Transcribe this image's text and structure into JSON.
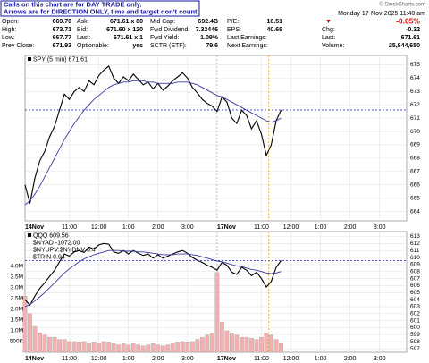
{
  "header": {
    "notice": [
      "Calls on this chart are for DAY TRADE only.",
      "Arrows are for DIRECTION ONLY, time and target don't count."
    ],
    "copyright": "© StockCharts.com",
    "date": "Monday 17-Nov-2025 11:40 am",
    "change_pct": "-0.05%",
    "quote": [
      [
        "Open:",
        "669.70",
        "Ask:",
        "671.61 x 80",
        "Mid Cap:",
        "692.4B",
        "P/E:",
        "16.51"
      ],
      [
        "High:",
        "673.71",
        "Bid:",
        "671.60 x 120",
        "Fwd Dividend:",
        "7.32446",
        "EPS:",
        "40.69"
      ],
      [
        "Low:",
        "667.77",
        "Last:",
        "671.61 x 1",
        "Fwd Yield:",
        "1.09%",
        "Last Earnings:",
        ""
      ],
      [
        "Prev Close:",
        "671.93",
        "Optionable:",
        "yes",
        "SCTR (ETF):",
        "79.6",
        "Next Earnings:",
        ""
      ]
    ],
    "right": [
      [
        "Chg:",
        "-0.32"
      ],
      [
        "Last:",
        "671.61"
      ],
      [
        "Volume:",
        "25,844,650"
      ]
    ]
  },
  "chart_data": [
    {
      "type": "line",
      "x": [
        0,
        2,
        4,
        6,
        8,
        10,
        12,
        14,
        16,
        18,
        20,
        22,
        24,
        26,
        28,
        30,
        32,
        34,
        36,
        38,
        40,
        42,
        44,
        46,
        48,
        50,
        52,
        54,
        56,
        58,
        60,
        62,
        64,
        66,
        68,
        70,
        72,
        74,
        76,
        78,
        80,
        82,
        84,
        86,
        88,
        90,
        92,
        94,
        96,
        98,
        100,
        102,
        104
      ],
      "series": [
        {
          "name": "SPY (5 min) 671.61",
          "color": "#000000",
          "values": [
            666.0,
            664.6,
            666.5,
            667.8,
            668.5,
            669.6,
            670.4,
            671.6,
            672.8,
            672.4,
            673.0,
            673.3,
            673.0,
            673.8,
            673.5,
            674.2,
            674.6,
            674.9,
            674.0,
            673.6,
            674.1,
            673.8,
            674.3,
            673.9,
            673.5,
            673.7,
            673.2,
            673.6,
            673.1,
            673.4,
            673.8,
            674.1,
            674.4,
            674.0,
            673.3,
            672.9,
            672.4,
            672.1,
            671.9,
            671.5,
            672.6,
            672.2,
            671.0,
            670.6,
            671.6,
            671.2,
            670.2,
            670.8,
            669.8,
            668.2,
            669.0,
            670.8,
            671.61
          ]
        },
        {
          "color": "#3a3aa0",
          "values": [
            664.5,
            664.8,
            665.3,
            665.9,
            666.6,
            667.3,
            668.0,
            668.7,
            669.4,
            670.0,
            670.6,
            671.1,
            671.6,
            672.0,
            672.4,
            672.7,
            673.0,
            673.3,
            673.5,
            673.6,
            673.7,
            673.7,
            673.8,
            673.8,
            673.8,
            673.7,
            673.7,
            673.6,
            673.6,
            673.6,
            673.6,
            673.7,
            673.7,
            673.7,
            673.6,
            673.5,
            673.3,
            673.1,
            672.9,
            672.7,
            672.6,
            672.4,
            672.2,
            672.0,
            671.8,
            671.6,
            671.4,
            671.2,
            671.0,
            670.8,
            670.7,
            670.8,
            671.0
          ]
        }
      ],
      "ref_line": 671.61,
      "marker_x": 99,
      "xlim": [
        0,
        155
      ],
      "xticks": [
        {
          "value": 0,
          "label": "14Nov"
        },
        {
          "value": 18,
          "label": "11:00"
        },
        {
          "value": 30,
          "label": "12:00"
        },
        {
          "value": 42,
          "label": "1:00"
        },
        {
          "value": 54,
          "label": "2:00"
        },
        {
          "value": 66,
          "label": "3:00"
        },
        {
          "value": 78,
          "label": "17Nov"
        },
        {
          "value": 96,
          "label": "11:00"
        },
        {
          "value": 108,
          "label": "12:00"
        },
        {
          "value": 120,
          "label": "1:00"
        },
        {
          "value": 132,
          "label": "2:00"
        },
        {
          "value": 144,
          "label": "3:00"
        }
      ],
      "ylim": [
        663.3,
        675.7
      ],
      "yticks": [
        664,
        665,
        666,
        667,
        668,
        669,
        670,
        671,
        672,
        673,
        674,
        675
      ],
      "grid": true
    },
    {
      "type": "line",
      "x": [
        0,
        2,
        4,
        6,
        8,
        10,
        12,
        14,
        16,
        18,
        20,
        22,
        24,
        26,
        28,
        30,
        32,
        34,
        36,
        38,
        40,
        42,
        44,
        46,
        48,
        50,
        52,
        54,
        56,
        58,
        60,
        62,
        64,
        66,
        68,
        70,
        72,
        74,
        76,
        78,
        80,
        82,
        84,
        86,
        88,
        90,
        92,
        94,
        96,
        98,
        100,
        102,
        104
      ],
      "indicators": [
        "$NYAD -1072.00",
        "$NYUPV:$NYDNV 0.4",
        "$TRIN 0.94"
      ],
      "series": [
        {
          "name": "QQQ 609.56",
          "color": "#000000",
          "values": [
            604.0,
            603.2,
            604.5,
            605.6,
            606.4,
            607.3,
            608.2,
            609.4,
            610.5,
            610.2,
            610.8,
            611.0,
            610.7,
            611.5,
            611.2,
            611.8,
            612.0,
            611.9,
            610.8,
            610.6,
            611.0,
            610.5,
            611.0,
            610.6,
            610.3,
            610.5,
            609.9,
            610.4,
            609.9,
            610.2,
            610.5,
            610.8,
            611.0,
            610.6,
            610.0,
            609.6,
            609.3,
            608.9,
            608.6,
            608.2,
            609.3,
            608.9,
            607.9,
            607.6,
            608.6,
            608.2,
            607.4,
            607.9,
            607.0,
            605.8,
            606.6,
            608.6,
            609.56
          ]
        },
        {
          "color": "#3a3aa0",
          "values": [
            603.0,
            603.3,
            603.8,
            604.4,
            605.0,
            605.7,
            606.4,
            607.1,
            607.8,
            608.4,
            608.9,
            609.4,
            609.8,
            610.1,
            610.4,
            610.6,
            610.8,
            611.0,
            611.0,
            611.0,
            610.9,
            610.9,
            610.9,
            610.8,
            610.8,
            610.7,
            610.6,
            610.5,
            610.4,
            610.4,
            610.4,
            610.5,
            610.5,
            610.5,
            610.4,
            610.3,
            610.1,
            609.9,
            609.7,
            609.5,
            609.4,
            609.2,
            609.0,
            608.8,
            608.7,
            608.5,
            608.3,
            608.2,
            608.0,
            607.8,
            607.7,
            607.8,
            608.0
          ]
        },
        {
          "color": "#f2b0b0",
          "axis": "y2",
          "kind": "bar",
          "values": [
            2600000,
            1800000,
            1200000,
            900000,
            800000,
            700000,
            700000,
            600000,
            600000,
            500000,
            500000,
            450000,
            500000,
            400000,
            450000,
            400000,
            500000,
            450000,
            400000,
            350000,
            400000,
            350000,
            400000,
            350000,
            300000,
            350000,
            400000,
            350000,
            300000,
            350000,
            400000,
            450000,
            500000,
            450000,
            500000,
            600000,
            700000,
            800000,
            900000,
            3700000,
            1400000,
            1000000,
            900000,
            800000,
            700000,
            700000,
            650000,
            600000,
            700000,
            900000,
            800000,
            600000,
            400000
          ]
        }
      ],
      "ref_line": 609.56,
      "marker_x": 99,
      "xlim": [
        0,
        155
      ],
      "xticks": [
        {
          "value": 0,
          "label": "14Nov"
        },
        {
          "value": 18,
          "label": "11:00"
        },
        {
          "value": 30,
          "label": "12:00"
        },
        {
          "value": 42,
          "label": "1:00"
        },
        {
          "value": 54,
          "label": "2:00"
        },
        {
          "value": 66,
          "label": "3:00"
        },
        {
          "value": 78,
          "label": "17Nov"
        },
        {
          "value": 96,
          "label": "11:00"
        },
        {
          "value": 108,
          "label": "12:00"
        },
        {
          "value": 120,
          "label": "1:00"
        },
        {
          "value": 132,
          "label": "2:00"
        },
        {
          "value": 144,
          "label": "3:00"
        }
      ],
      "ylim": [
        596.5,
        613.7
      ],
      "yticks": [
        597,
        598,
        599,
        600,
        601,
        602,
        603,
        604,
        605,
        606,
        607,
        608,
        609,
        610,
        611,
        612,
        613
      ],
      "y2lim": [
        0,
        5600000
      ],
      "y2ticks": [
        {
          "value": 500000,
          "label": "500K"
        },
        {
          "value": 1000000,
          "label": "1.0M"
        },
        {
          "value": 1500000,
          "label": "1.5M"
        },
        {
          "value": 2000000,
          "label": "2.0M"
        },
        {
          "value": 2500000,
          "label": "2.5M"
        },
        {
          "value": 3000000,
          "label": "3.0M"
        },
        {
          "value": 3500000,
          "label": "3.5M"
        },
        {
          "value": 4000000,
          "label": "4.0M"
        }
      ],
      "grid": true
    }
  ]
}
